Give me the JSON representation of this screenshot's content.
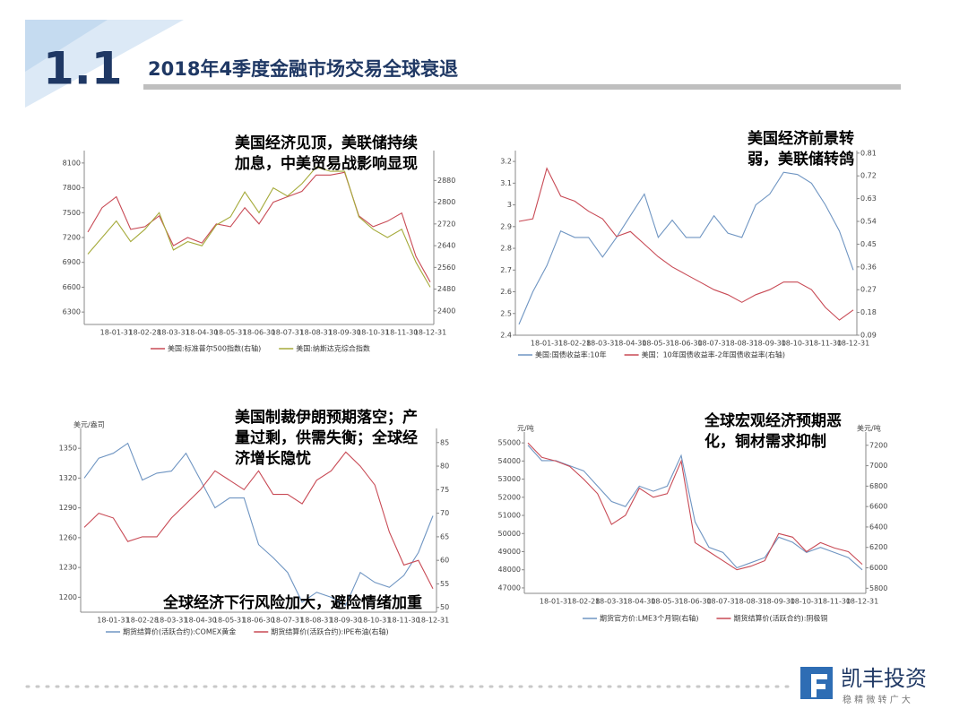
{
  "header": {
    "number": "1.1",
    "title": "2018年4季度金融市场交易全球衰退"
  },
  "logo": {
    "name": "凯丰投资",
    "slogan": "稳 精 微 转 广 大"
  },
  "chart_data": [
    {
      "type": "line",
      "annotations": [
        [
          "美国经济见顶，美联储持续",
          "加息，中美贸易战影响显现"
        ]
      ],
      "categories": [
        null,
        null,
        "18-01-31",
        null,
        "18-02-28",
        null,
        "18-03-31",
        null,
        "18-04-30",
        null,
        "18-05-31",
        null,
        "18-06-30",
        null,
        "18-07-31",
        null,
        "18-08-31",
        null,
        "18-09-30",
        null,
        "18-10-31",
        null,
        "18-11-30",
        null,
        "18-12-31"
      ],
      "ylim": [
        6150,
        8250
      ],
      "yticks": [
        6300,
        6600,
        6900,
        7200,
        7500,
        7800,
        8100
      ],
      "y2lim": [
        2350,
        2990
      ],
      "y2ticks": [
        2400,
        2480,
        2560,
        2640,
        2720,
        2800,
        2880
      ],
      "grid": false,
      "series": [
        {
          "name": "美国:标准普尔500指数(右轴)",
          "color": "#c84a55",
          "axis": "y2",
          "values": [
            2690,
            2780,
            2820,
            2700,
            2710,
            2750,
            2640,
            2670,
            2650,
            2720,
            2710,
            2780,
            2720,
            2800,
            2820,
            2840,
            2900,
            2900,
            2910,
            2750,
            2710,
            2730,
            2760,
            2600,
            2506
          ]
        },
        {
          "name": "美国:纳斯达克综合指数",
          "color": "#a5aa3a",
          "values": [
            7000,
            7200,
            7400,
            7150,
            7300,
            7500,
            7050,
            7150,
            7100,
            7350,
            7450,
            7750,
            7500,
            7800,
            7700,
            7850,
            8050,
            8000,
            8000,
            7450,
            7300,
            7200,
            7300,
            6900,
            6600
          ]
        }
      ]
    },
    {
      "type": "line",
      "annotations": [
        [
          "美国经济前景转",
          "弱，美联储转鸽"
        ]
      ],
      "categories": [
        null,
        null,
        "18-01-31",
        null,
        "18-02-28",
        null,
        "18-03-31",
        null,
        "18-04-30",
        null,
        "18-05-31",
        null,
        "18-06-30",
        null,
        "18-07-31",
        null,
        "18-08-31",
        null,
        "18-09-30",
        null,
        "18-10-31",
        null,
        "18-11-30",
        null,
        "18-12-31"
      ],
      "ylim": [
        2.4,
        3.25
      ],
      "yticks": [
        2.4,
        2.5,
        2.6,
        2.7,
        2.8,
        2.9,
        3,
        3.1,
        3.2
      ],
      "y2lim": [
        0.09,
        0.82
      ],
      "y2ticks": [
        0.09,
        0.18,
        0.27,
        0.36,
        0.45,
        0.54,
        0.63,
        0.72,
        0.81
      ],
      "grid": false,
      "series": [
        {
          "name": "美国:国债收益率:10年",
          "color": "#6f95c2",
          "values": [
            2.45,
            2.6,
            2.72,
            2.88,
            2.85,
            2.85,
            2.76,
            2.85,
            2.95,
            3.05,
            2.85,
            2.93,
            2.85,
            2.85,
            2.95,
            2.87,
            2.85,
            3.0,
            3.05,
            3.15,
            3.14,
            3.1,
            3.0,
            2.88,
            2.7
          ]
        },
        {
          "name": "美国：10年国债收益率-2年国债收益率(右轴)",
          "color": "#c84a55",
          "axis": "y2",
          "values": [
            0.54,
            0.55,
            0.75,
            0.64,
            0.62,
            0.58,
            0.55,
            0.48,
            0.5,
            0.45,
            0.4,
            0.36,
            0.33,
            0.3,
            0.27,
            0.25,
            0.22,
            0.25,
            0.27,
            0.3,
            0.3,
            0.27,
            0.2,
            0.15,
            0.19
          ]
        }
      ]
    },
    {
      "type": "line",
      "annotations": [
        [
          "美国制裁伊朗预期落空；产",
          "量过剩，供需失衡；全球经",
          "济增长隐忧"
        ],
        [
          "全球经济下行风险加大，避险情绪加重"
        ]
      ],
      "y_unit": "美元/盎司",
      "categories": [
        null,
        null,
        "18-01-31",
        null,
        "18-02-28",
        null,
        "18-03-31",
        null,
        "18-04-30",
        null,
        "18-05-31",
        null,
        "18-06-30",
        null,
        "18-07-31",
        null,
        "18-08-31",
        null,
        "18-09-30",
        null,
        "18-10-31",
        null,
        "18-11-30",
        null,
        "18-12-31"
      ],
      "ylim": [
        1185,
        1370
      ],
      "yticks": [
        1200,
        1230,
        1260,
        1290,
        1320,
        1350
      ],
      "y2lim": [
        49,
        88
      ],
      "y2ticks": [
        50,
        55,
        60,
        65,
        70,
        75,
        80,
        85
      ],
      "grid": false,
      "series": [
        {
          "name": "期货结算价(活跃合约):COMEX黄金",
          "color": "#6f95c2",
          "values": [
            1320,
            1340,
            1345,
            1355,
            1318,
            1325,
            1327,
            1345,
            1318,
            1290,
            1300,
            1300,
            1253,
            1240,
            1225,
            1195,
            1205,
            1200,
            1192,
            1225,
            1215,
            1210,
            1222,
            1245,
            1282
          ]
        },
        {
          "name": "期货结算价(活跃合约):IPE布油(右轴)",
          "color": "#c84a55",
          "axis": "y2",
          "values": [
            67,
            70,
            69,
            64,
            65,
            65,
            69,
            72,
            75,
            79,
            77,
            75,
            79,
            74,
            74,
            72,
            77,
            79,
            83,
            80,
            76,
            66,
            59,
            60,
            54
          ]
        }
      ]
    },
    {
      "type": "line",
      "annotations": [
        [
          "全球宏观经济预期恶",
          "化，铜材需求抑制"
        ]
      ],
      "y_unit": "元/吨",
      "y2_unit": "美元/吨",
      "categories": [
        null,
        null,
        "18-01-31",
        null,
        "18-02-28",
        null,
        "18-03-31",
        null,
        "18-04-30",
        null,
        "18-05-31",
        null,
        "18-06-30",
        null,
        "18-07-31",
        null,
        "18-08-31",
        null,
        "18-09-30",
        null,
        "18-10-31",
        null,
        "18-11-30",
        null,
        "18-12-31"
      ],
      "ylim": [
        46700,
        55600
      ],
      "yticks": [
        47000,
        48000,
        49000,
        50000,
        51000,
        52000,
        53000,
        54000,
        55000
      ],
      "y2lim": [
        5750,
        7330
      ],
      "y2ticks": [
        5800,
        6000,
        6200,
        6400,
        6600,
        6800,
        7000,
        7200
      ],
      "grid": false,
      "series": [
        {
          "name": "期货官方价:LME3个月铜(右轴)",
          "color": "#6f95c2",
          "axis": "y2",
          "values": [
            7200,
            7050,
            7050,
            7000,
            6950,
            6800,
            6650,
            6600,
            6800,
            6750,
            6800,
            7100,
            6450,
            6200,
            6150,
            6000,
            6050,
            6100,
            6300,
            6250,
            6150,
            6200,
            6150,
            6100,
            5980
          ]
        },
        {
          "name": "期货结算价(活跃合约):阴极铜",
          "color": "#c84a55",
          "values": [
            55000,
            54200,
            54000,
            53700,
            53000,
            52200,
            50500,
            51000,
            52500,
            52000,
            52200,
            54000,
            49500,
            49000,
            48500,
            48000,
            48200,
            48500,
            50000,
            49800,
            49000,
            49500,
            49200,
            49000,
            48300
          ]
        }
      ]
    }
  ]
}
